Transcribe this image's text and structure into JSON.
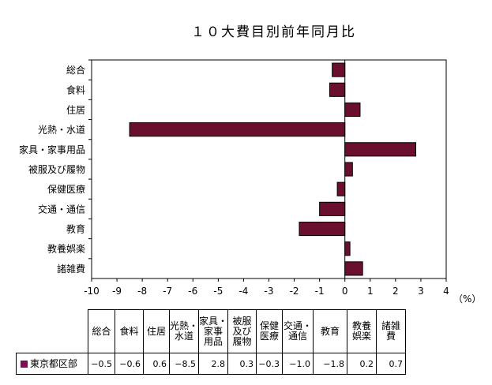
{
  "chart_data": {
    "type": "bar",
    "orientation": "horizontal",
    "title": "１０大費目別前年同月比",
    "unit_label": "（%）",
    "categories": [
      "総合",
      "食料",
      "住居",
      "光熱・水道",
      "家具・家事用品",
      "被服及び履物",
      "保健医療",
      "交通・通信",
      "教育",
      "教養娯楽",
      "諸雑費"
    ],
    "series": [
      {
        "name": "東京都区部",
        "values": [
          -0.5,
          -0.6,
          0.6,
          -8.5,
          2.8,
          0.3,
          -0.3,
          -1.0,
          -1.8,
          0.2,
          0.7
        ],
        "value_labels": [
          "−0.5",
          "−0.6",
          "0.6",
          "−8.5",
          "2.8",
          "0.3",
          "−0.3",
          "−1.0",
          "−1.8",
          "0.2",
          "0.7"
        ]
      }
    ],
    "xlim": [
      -10,
      4
    ],
    "xticks": [
      -10,
      -9,
      -8,
      -7,
      -6,
      -5,
      -4,
      -3,
      -2,
      -1,
      0,
      1,
      2,
      3,
      4
    ],
    "grid": false,
    "legend": "table-bottom"
  },
  "table": {
    "headers": [
      [
        "総合"
      ],
      [
        "食料"
      ],
      [
        "住居"
      ],
      [
        "光熱・",
        "水道"
      ],
      [
        "家具・",
        "家事",
        "用品"
      ],
      [
        "被服",
        "及び",
        "履物"
      ],
      [
        "保健",
        "医療"
      ],
      [
        "交通・",
        "通信"
      ],
      [
        "教育"
      ],
      [
        "教養",
        "娯楽"
      ],
      [
        "諸雑",
        "費"
      ]
    ]
  },
  "colors": {
    "bar": "#6b0f2e",
    "legend": "#7a1050"
  }
}
